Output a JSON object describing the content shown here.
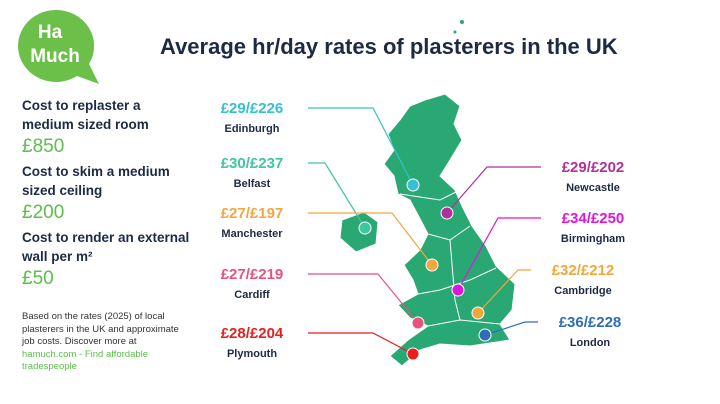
{
  "logo": [
    "Ha",
    "Much"
  ],
  "title": "Average hr/day rates of plasterers in the UK",
  "costs": [
    {
      "label": "Cost to replaster a medium sized room",
      "value": "£850"
    },
    {
      "label": "Cost to skim a medium sized ceiling",
      "value": "£200"
    },
    {
      "label": "Cost to render an external wall per m²",
      "value": "£50"
    }
  ],
  "note": "Based on the rates (2025) of local plasterers in the UK and approximate job costs. Discover more at",
  "note_link": "hamuch.com - Find affordable tradespeople",
  "cities": [
    {
      "rate": "£29/£226",
      "name": "Edinburgh",
      "color": "#35c0d3"
    },
    {
      "rate": "£30/£237",
      "name": "Belfast",
      "color": "#3fc79e"
    },
    {
      "rate": "£27/£197",
      "name": "Manchester",
      "color": "#f4a640"
    },
    {
      "rate": "£27/£219",
      "name": "Cardiff",
      "color": "#e8527c"
    },
    {
      "rate": "£28/£204",
      "name": "Plymouth",
      "color": "#e81f1c"
    },
    {
      "rate": "£29/£202",
      "name": "Newcastle",
      "color": "#b0309c"
    },
    {
      "rate": "£34/£250",
      "name": "Birmingham",
      "color": "#dd15dd"
    },
    {
      "rate": "£32/£212",
      "name": "Cambridge",
      "color": "#f0a83a"
    },
    {
      "rate": "£36/£228",
      "name": "London",
      "color": "#2f6eb5"
    }
  ]
}
